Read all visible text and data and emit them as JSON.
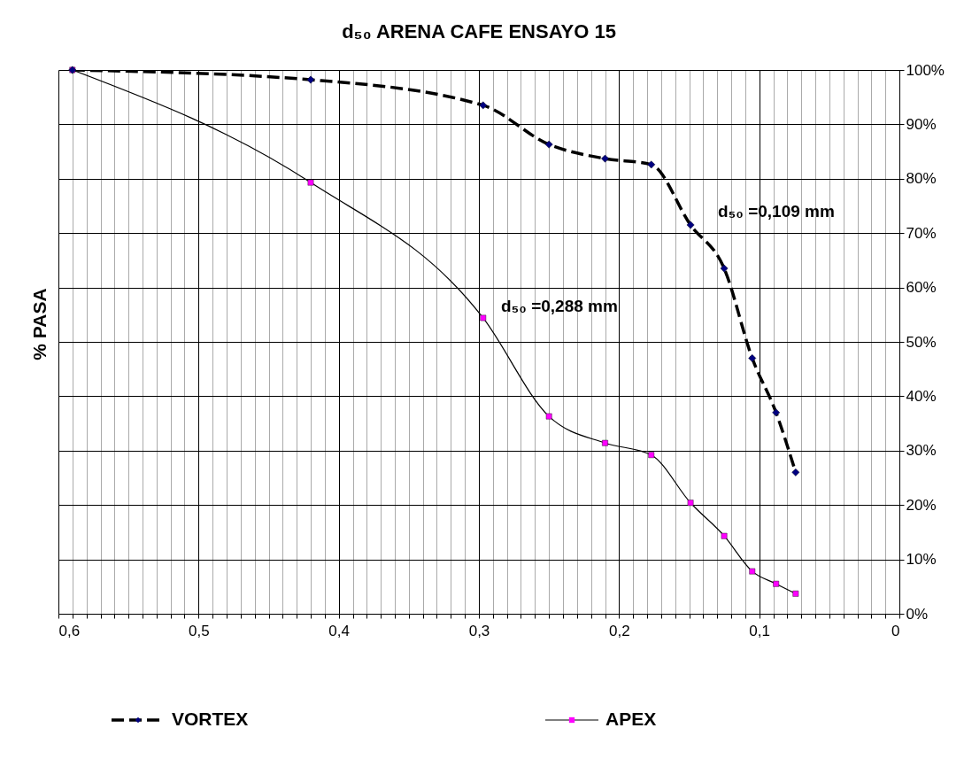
{
  "chart_data": {
    "type": "line",
    "title": "d₅₀ ARENA CAFE  ENSAYO 15",
    "ylabel": "% PASA",
    "x": [
      0.59,
      0.42,
      0.297,
      0.25,
      0.21,
      0.177,
      0.149,
      0.125,
      0.105,
      0.088,
      0.074
    ],
    "series": [
      {
        "name": "VORTEX",
        "color": "#000080",
        "marker": "diamond",
        "line_style": "dashed",
        "values": [
          100,
          98.2,
          93.5,
          86.3,
          83.7,
          82.6,
          71.5,
          63.5,
          47,
          37,
          26
        ]
      },
      {
        "name": "APEX",
        "color": "#ff00ff",
        "marker": "square",
        "line_style": "solid",
        "values": [
          100,
          79.3,
          54.4,
          36.3,
          31.4,
          29.2,
          20.4,
          14.3,
          7.8,
          5.5,
          3.7
        ]
      }
    ],
    "xlim": [
      0.6,
      0
    ],
    "xticks": [
      {
        "value": 0.6,
        "label": "0,6"
      },
      {
        "value": 0.59,
        "label": null
      },
      {
        "value": 0.58,
        "label": null
      },
      {
        "value": 0.57,
        "label": null
      },
      {
        "value": 0.56,
        "label": null
      },
      {
        "value": 0.55,
        "label": null
      },
      {
        "value": 0.54,
        "label": null
      },
      {
        "value": 0.53,
        "label": null
      },
      {
        "value": 0.52,
        "label": null
      },
      {
        "value": 0.51,
        "label": null
      },
      {
        "value": 0.5,
        "label": "0,5"
      },
      {
        "value": 0.49,
        "label": null
      },
      {
        "value": 0.48,
        "label": null
      },
      {
        "value": 0.47,
        "label": null
      },
      {
        "value": 0.46,
        "label": null
      },
      {
        "value": 0.45,
        "label": null
      },
      {
        "value": 0.44,
        "label": null
      },
      {
        "value": 0.43,
        "label": null
      },
      {
        "value": 0.42,
        "label": null
      },
      {
        "value": 0.41,
        "label": null
      },
      {
        "value": 0.4,
        "label": "0,4"
      },
      {
        "value": 0.39,
        "label": null
      },
      {
        "value": 0.38,
        "label": null
      },
      {
        "value": 0.37,
        "label": null
      },
      {
        "value": 0.36,
        "label": null
      },
      {
        "value": 0.35,
        "label": null
      },
      {
        "value": 0.34,
        "label": null
      },
      {
        "value": 0.33,
        "label": null
      },
      {
        "value": 0.32,
        "label": null
      },
      {
        "value": 0.31,
        "label": null
      },
      {
        "value": 0.3,
        "label": "0,3"
      },
      {
        "value": 0.29,
        "label": null
      },
      {
        "value": 0.28,
        "label": null
      },
      {
        "value": 0.27,
        "label": null
      },
      {
        "value": 0.26,
        "label": null
      },
      {
        "value": 0.25,
        "label": null
      },
      {
        "value": 0.24,
        "label": null
      },
      {
        "value": 0.23,
        "label": null
      },
      {
        "value": 0.22,
        "label": null
      },
      {
        "value": 0.21,
        "label": null
      },
      {
        "value": 0.2,
        "label": "0,2"
      },
      {
        "value": 0.19,
        "label": null
      },
      {
        "value": 0.18,
        "label": null
      },
      {
        "value": 0.17,
        "label": null
      },
      {
        "value": 0.16,
        "label": null
      },
      {
        "value": 0.15,
        "label": null
      },
      {
        "value": 0.14,
        "label": null
      },
      {
        "value": 0.13,
        "label": null
      },
      {
        "value": 0.12,
        "label": null
      },
      {
        "value": 0.11,
        "label": null
      },
      {
        "value": 0.1,
        "label": "0,1"
      },
      {
        "value": 0.09,
        "label": null
      },
      {
        "value": 0.08,
        "label": null
      },
      {
        "value": 0.07,
        "label": null
      },
      {
        "value": 0.06,
        "label": null
      },
      {
        "value": 0.05,
        "label": null
      },
      {
        "value": 0.04,
        "label": null
      },
      {
        "value": 0.03,
        "label": null
      },
      {
        "value": 0.02,
        "label": null
      },
      {
        "value": 0.01,
        "label": null
      },
      {
        "value": 0,
        "label": "0"
      }
    ],
    "ylim": [
      0,
      100
    ],
    "yticks": [
      {
        "value": 0,
        "label": "0%"
      },
      {
        "value": 10,
        "label": "10%"
      },
      {
        "value": 20,
        "label": "20%"
      },
      {
        "value": 30,
        "label": "30%"
      },
      {
        "value": 40,
        "label": "40%"
      },
      {
        "value": 50,
        "label": "50%"
      },
      {
        "value": 60,
        "label": "60%"
      },
      {
        "value": 70,
        "label": "70%"
      },
      {
        "value": 80,
        "label": "80%"
      },
      {
        "value": 90,
        "label": "90%"
      },
      {
        "value": 100,
        "label": "100%"
      }
    ],
    "annotations": [
      "d₅₀ =0,109 mm",
      "d₅₀ =0,288 mm"
    ],
    "grid": true,
    "legend": "bottom"
  }
}
